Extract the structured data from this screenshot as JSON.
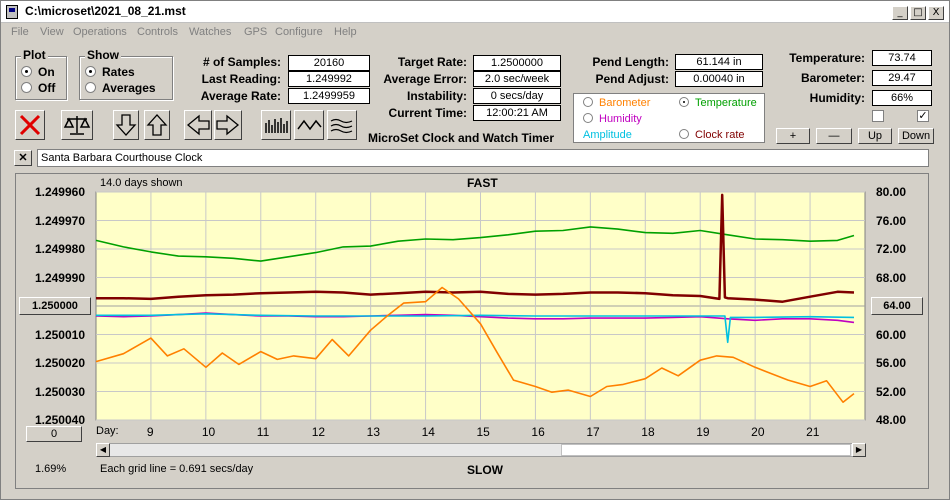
{
  "window": {
    "title": "C:\\microset\\2021_08_21.mst",
    "buttons": [
      "_",
      "□",
      "X"
    ]
  },
  "menu": [
    "File",
    "View",
    "Operations",
    "Controls",
    "Watches",
    "GPS",
    "Configure",
    "Help"
  ],
  "plot_group": {
    "label": "Plot",
    "options": [
      "On",
      "Off"
    ],
    "selected": "On"
  },
  "show_group": {
    "label": "Show",
    "options": [
      "Rates",
      "Averages"
    ],
    "selected": "Rates"
  },
  "stats": {
    "samples_label": "# of Samples:",
    "samples": "20160",
    "last_reading_label": "Last Reading:",
    "last_reading": "1.249992",
    "average_rate_label": "Average Rate:",
    "average_rate": "1.2499959",
    "target_rate_label": "Target Rate:",
    "target_rate": "1.2500000",
    "average_error_label": "Average Error:",
    "average_error": "2.0 sec/week",
    "instability_label": "Instability:",
    "instability": "0 secs/day",
    "current_time_label": "Current Time:",
    "current_time": "12:00:21 AM",
    "pend_length_label": "Pend Length:",
    "pend_length": "61.144 in",
    "pend_adjust_label": "Pend Adjust:",
    "pend_adjust": "0.00040 in",
    "temperature_label": "Temperature:",
    "temperature": "73.74",
    "barometer_label": "Barometer:",
    "barometer": "29.47",
    "humidity_label": "Humidity:",
    "humidity": "66%"
  },
  "app_label": "MicroSet Clock and Watch Timer",
  "sensors": [
    {
      "label": "Barometer",
      "color": "#ff8000",
      "selected": false
    },
    {
      "label": "Temperature",
      "color": "#00a000",
      "selected": true
    },
    {
      "label": "Humidity",
      "color": "#c000c0",
      "selected": false
    },
    {
      "label": "Clock rate",
      "color": "#800000",
      "selected": false
    },
    {
      "label": "Amplitude",
      "color": "#00c0e0",
      "selected": false
    }
  ],
  "adjust_buttons": [
    "+",
    "—",
    "Up",
    "Down"
  ],
  "checkboxes": [
    false,
    true
  ],
  "toolbar": [
    "close-x",
    "balance",
    "arrow-down",
    "arrow-up",
    "arrow-left",
    "arrow-right",
    "bars",
    "wave",
    "flat-wave"
  ],
  "clock_name": "Santa Barbara Courthouse Clock",
  "chart_data": {
    "type": "line",
    "title": "FAST",
    "bottom_label": "SLOW",
    "days_shown": "14.0 days shown",
    "grid_note": "Each grid line = 0.691 secs/day",
    "percent": "1.69%",
    "left_button": "0",
    "center_left": "1.250000",
    "center_right": "64.00",
    "x_label": "Day:",
    "x_ticks": [
      "9",
      "10",
      "11",
      "12",
      "13",
      "14",
      "15",
      "16",
      "17",
      "18",
      "19",
      "20",
      "21"
    ],
    "y_left_ticks": [
      "1.249960",
      "1.249970",
      "1.249980",
      "1.249990",
      "1.250000",
      "1.250010",
      "1.250020",
      "1.250030",
      "1.250040"
    ],
    "y_right_ticks": [
      "80.00",
      "76.00",
      "72.00",
      "68.00",
      "64.00",
      "60.00",
      "56.00",
      "52.00",
      "48.00"
    ],
    "xlim": [
      8.0,
      22.0
    ],
    "y_right_range": [
      48,
      80
    ],
    "grid": true,
    "series": [
      {
        "name": "Temperature",
        "color": "#00a000",
        "x": [
          8.0,
          8.5,
          9.0,
          9.5,
          10.0,
          10.5,
          11.0,
          11.5,
          12.0,
          12.5,
          13.0,
          13.5,
          14.0,
          14.5,
          15.0,
          15.5,
          16.0,
          16.5,
          17.0,
          17.5,
          18.0,
          18.5,
          19.0,
          19.5,
          20.0,
          20.5,
          21.0,
          21.5,
          21.8
        ],
        "y": [
          73.2,
          72.3,
          71.6,
          71.0,
          70.9,
          70.7,
          70.3,
          70.9,
          71.5,
          72.3,
          72.4,
          73.1,
          73.4,
          73.3,
          73.6,
          74.0,
          74.5,
          74.6,
          75.1,
          74.8,
          74.3,
          74.2,
          74.6,
          74.0,
          73.4,
          73.3,
          73.1,
          73.2,
          73.9
        ]
      },
      {
        "name": "Clock rate",
        "color": "#800000",
        "x": [
          8.0,
          8.5,
          9.0,
          9.5,
          10.0,
          10.5,
          11.0,
          11.5,
          12.0,
          12.5,
          13.0,
          13.5,
          14.0,
          14.5,
          15.0,
          15.5,
          16.0,
          16.5,
          17.0,
          17.5,
          18.0,
          18.5,
          19.0,
          19.35,
          19.4,
          19.45,
          19.5,
          20.0,
          20.5,
          21.0,
          21.5,
          21.8
        ],
        "y": [
          65.1,
          65.1,
          65.0,
          65.3,
          65.5,
          65.6,
          65.8,
          65.9,
          66.0,
          65.9,
          65.6,
          65.8,
          66.0,
          65.9,
          66.0,
          65.7,
          65.6,
          65.7,
          65.9,
          65.9,
          65.8,
          65.5,
          65.4,
          65.0,
          79.6,
          65.2,
          65.1,
          64.9,
          64.6,
          65.3,
          66.0,
          65.9
        ]
      },
      {
        "name": "Humidity",
        "color": "#c000c0",
        "x": [
          8.0,
          8.5,
          9.0,
          9.5,
          10.0,
          10.5,
          11.0,
          11.5,
          12.0,
          12.5,
          13.0,
          13.5,
          14.0,
          14.5,
          15.0,
          15.5,
          16.0,
          16.5,
          17.0,
          17.5,
          18.0,
          18.5,
          19.0,
          19.5,
          20.0,
          20.5,
          21.0,
          21.5,
          21.8
        ],
        "y": [
          62.6,
          62.5,
          62.6,
          62.8,
          63.0,
          62.8,
          62.6,
          62.6,
          62.5,
          62.5,
          62.6,
          62.7,
          62.8,
          62.7,
          62.5,
          62.3,
          62.2,
          62.2,
          62.3,
          62.3,
          62.3,
          62.4,
          62.5,
          62.2,
          62.0,
          62.2,
          62.2,
          62.0,
          61.7
        ]
      },
      {
        "name": "Amplitude",
        "color": "#00c0e0",
        "x": [
          8.0,
          9.0,
          10.0,
          11.0,
          12.0,
          13.0,
          14.0,
          15.0,
          16.0,
          17.0,
          18.0,
          19.0,
          19.45,
          19.5,
          19.55,
          20.0,
          21.0,
          21.8
        ],
        "y": [
          62.7,
          62.7,
          62.9,
          62.7,
          62.6,
          62.6,
          62.6,
          62.7,
          62.6,
          62.6,
          62.6,
          62.6,
          62.6,
          58.9,
          62.4,
          62.4,
          62.5,
          62.4
        ]
      },
      {
        "name": "Barometer",
        "color": "#ff8000",
        "x": [
          8.0,
          8.5,
          9.0,
          9.3,
          9.6,
          10.0,
          10.3,
          10.6,
          11.0,
          11.3,
          11.6,
          12.0,
          12.3,
          12.6,
          13.0,
          13.3,
          13.6,
          14.0,
          14.3,
          14.6,
          15.0,
          15.3,
          15.6,
          16.0,
          16.3,
          16.6,
          17.0,
          17.3,
          17.6,
          18.0,
          18.3,
          18.6,
          19.0,
          19.3,
          19.6,
          20.0,
          20.3,
          20.6,
          21.0,
          21.3,
          21.6,
          21.8
        ],
        "y": [
          56.2,
          57.3,
          59.5,
          57.0,
          58.0,
          55.4,
          57.4,
          55.8,
          57.6,
          56.5,
          57.0,
          56.6,
          59.3,
          57.0,
          60.6,
          62.6,
          64.4,
          64.6,
          66.6,
          65.0,
          61.5,
          57.5,
          53.6,
          52.7,
          51.9,
          52.2,
          51.3,
          52.7,
          53.0,
          53.8,
          55.3,
          54.2,
          56.4,
          57.0,
          56.8,
          55.4,
          54.5,
          53.6,
          52.7,
          53.5,
          50.5,
          51.7
        ]
      }
    ]
  }
}
